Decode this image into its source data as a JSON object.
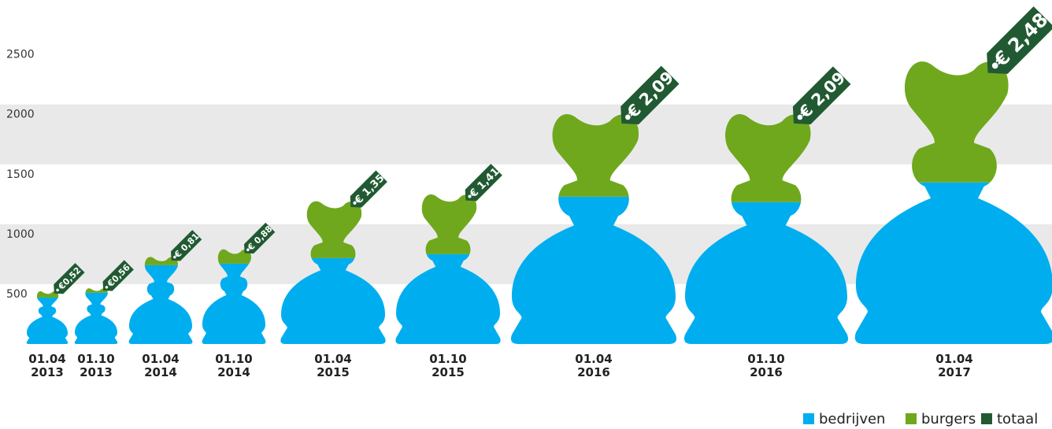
{
  "chart_data": {
    "type": "bag",
    "categories": [
      [
        "01.04",
        "2013"
      ],
      [
        "01.10",
        "2013"
      ],
      [
        "01.04",
        "2014"
      ],
      [
        "01.10",
        "2014"
      ],
      [
        "01.04",
        "2015"
      ],
      [
        "01.10",
        "2015"
      ],
      [
        "01.04",
        "2016"
      ],
      [
        "01.10",
        "2016"
      ],
      [
        "01.04",
        "2017"
      ]
    ],
    "series": [
      {
        "name": "bedrijven",
        "color": "#00aeef",
        "values": [
          388,
          428,
          658,
          671,
          717,
          750,
          1230,
          1184,
          1349
        ]
      },
      {
        "name": "burgers",
        "color": "#6fa81d",
        "values": [
          66,
          52,
          92,
          145,
          513,
          539,
          750,
          796,
          1085
        ]
      }
    ],
    "tags": {
      "name": "totaal",
      "color": "#215a32",
      "labels": [
        "€0,52",
        "€0,56",
        "€ 0,81",
        "€ 0,88",
        "€ 1,35",
        "€ 1,41",
        "€ 2,09",
        "€ 2,09",
        "€ 2,48"
      ]
    },
    "ylim": [
      0,
      2800
    ],
    "yticks": [
      500,
      1000,
      1500,
      2000,
      2500
    ],
    "bands": true
  }
}
